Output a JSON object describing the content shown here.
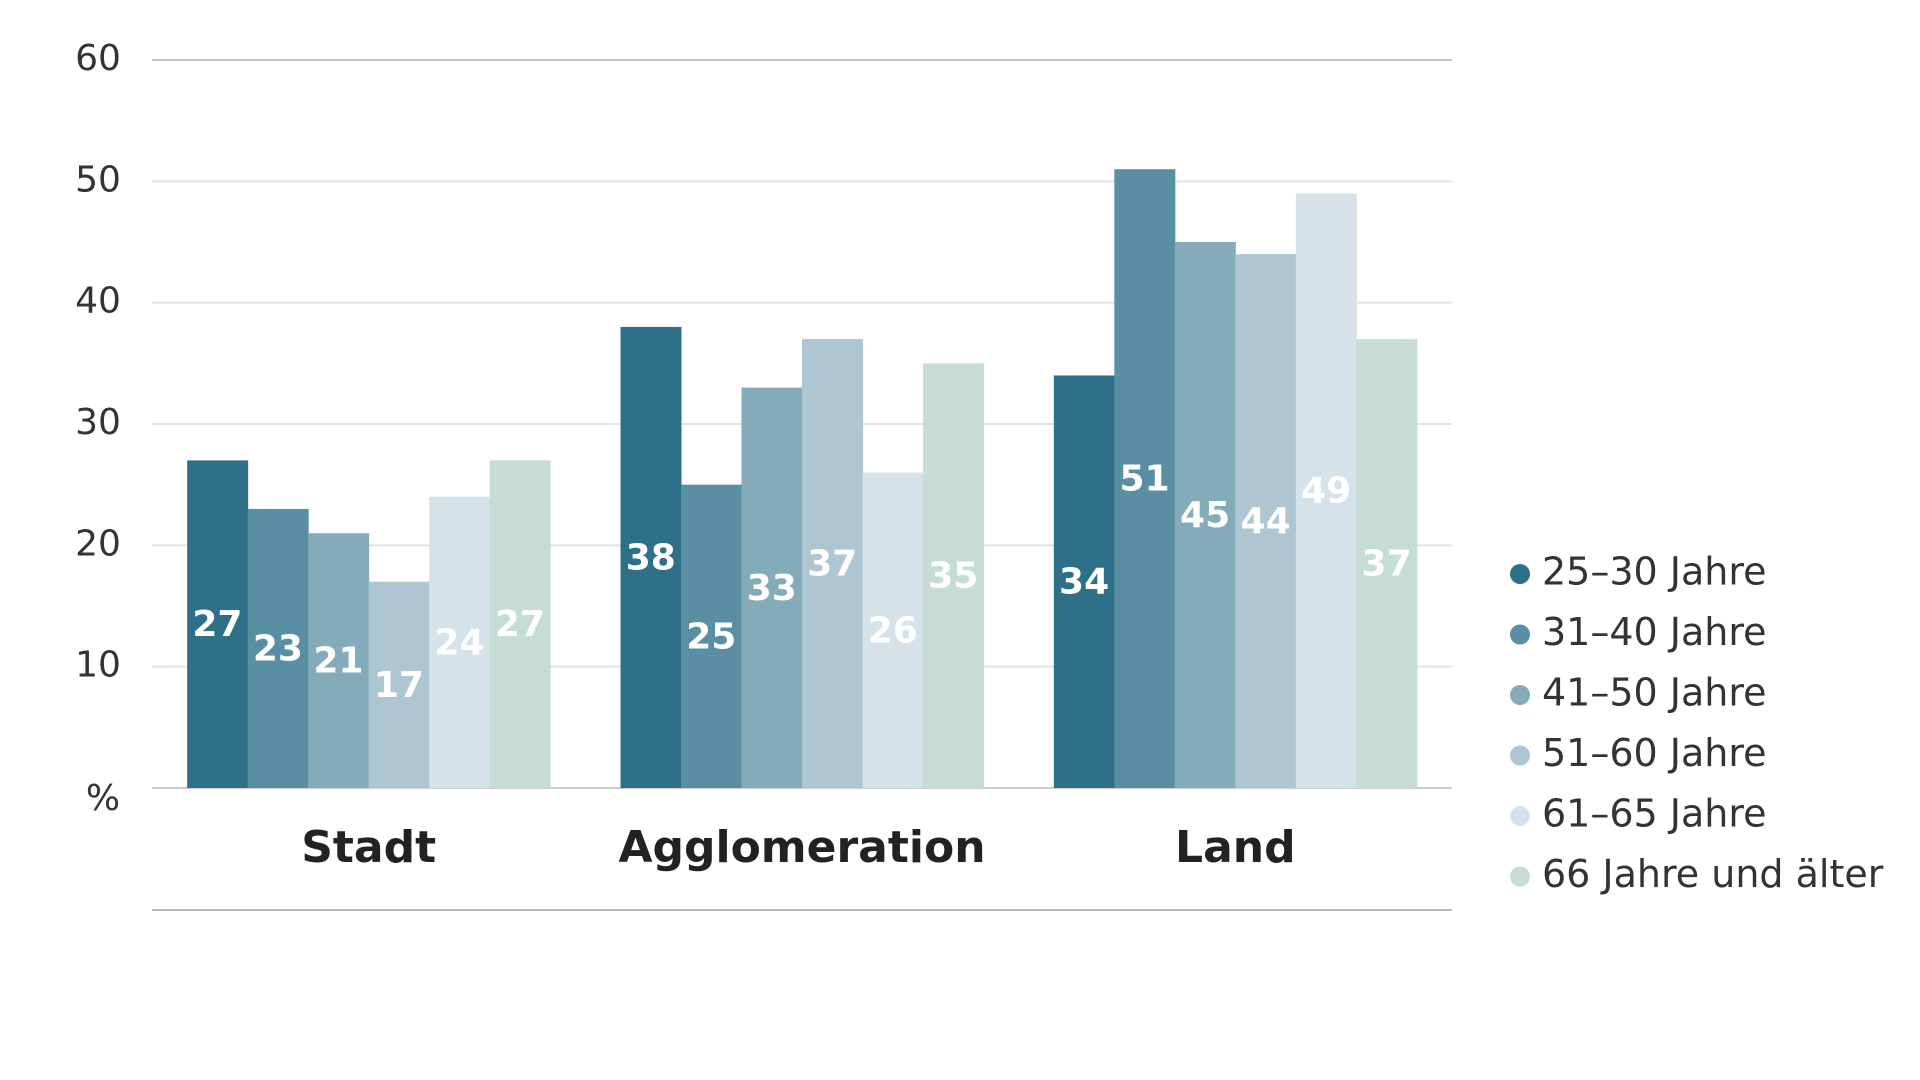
{
  "chart_data": {
    "type": "bar",
    "ylabel": "%",
    "ylim": [
      0,
      60
    ],
    "yticks": [
      10,
      20,
      30,
      40,
      50,
      60
    ],
    "grid": true,
    "legend_position": "right",
    "categories": [
      "Stadt",
      "Agglomeration",
      "Land"
    ],
    "series": [
      {
        "name": "25–30 Jahre",
        "values": [
          27,
          38,
          34
        ],
        "color": "#2e7088",
        "label_color": "#ffffff"
      },
      {
        "name": "31–40 Jahre",
        "values": [
          23,
          25,
          51
        ],
        "color": "#5a8fa3",
        "label_color": "#ffffff"
      },
      {
        "name": "41–50 Jahre",
        "values": [
          21,
          33,
          45
        ],
        "color": "#83abba",
        "label_color": "#ffffff"
      },
      {
        "name": "51–60 Jahre",
        "values": [
          17,
          37,
          44
        ],
        "color": "#adc6d2",
        "label_color": "#ffffff"
      },
      {
        "name": "61–65 Jahre",
        "values": [
          24,
          26,
          49
        ],
        "color": "#d5e2e9",
        "label_color": "#ffffff"
      },
      {
        "name": "66 Jahre und älter",
        "values": [
          27,
          35,
          37
        ],
        "color": "#c6ddd6",
        "label_color": "#ffffff"
      }
    ]
  }
}
